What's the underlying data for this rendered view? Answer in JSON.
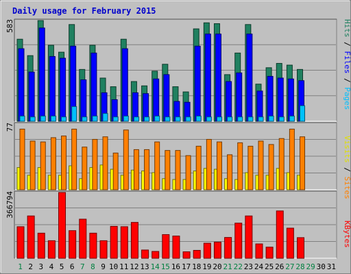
{
  "chart_data": [
    {
      "type": "bar",
      "title": "Daily usage for February 2015",
      "panel": "top",
      "ymax_label": "583",
      "ylim": [
        0,
        583
      ],
      "right_label": [
        "Pages",
        "Files",
        "Hits"
      ],
      "colors": {
        "Hits": "#208060",
        "Files": "#0000ff",
        "Pages": "#00c0ff"
      },
      "x": [
        "1",
        "2",
        "3",
        "4",
        "5",
        "6",
        "7",
        "8",
        "9",
        "10",
        "11",
        "12",
        "13",
        "14",
        "15",
        "16",
        "17",
        "18",
        "19",
        "20",
        "21",
        "22",
        "23",
        "24",
        "25",
        "26",
        "27",
        "28",
        "29",
        "30",
        "31"
      ],
      "x_colors": [
        "#008040",
        "#000000",
        "#000000",
        "#000000",
        "#000000",
        "#000000",
        "#008040",
        "#008040",
        "#000000",
        "#000000",
        "#000000",
        "#000000",
        "#000000",
        "#008040",
        "#008040",
        "#000000",
        "#000000",
        "#000000",
        "#000000",
        "#000000",
        "#008040",
        "#008040",
        "#000000",
        "#000000",
        "#000000",
        "#000000",
        "#008040",
        "#008040",
        "#008040",
        "#000000",
        "#000000"
      ],
      "series": [
        {
          "name": "Hits",
          "values": [
            475,
            380,
            583,
            440,
            400,
            560,
            300,
            440,
            250,
            200,
            475,
            230,
            205,
            290,
            330,
            200,
            170,
            535,
            570,
            565,
            270,
            395,
            560,
            215,
            310,
            335,
            325,
            300,
            0,
            0,
            0
          ]
        },
        {
          "name": "Files",
          "values": [
            420,
            285,
            540,
            375,
            365,
            435,
            240,
            395,
            165,
            125,
            420,
            165,
            160,
            245,
            270,
            115,
            110,
            435,
            505,
            505,
            230,
            280,
            505,
            175,
            260,
            250,
            245,
            235,
            0,
            0,
            0
          ]
        },
        {
          "name": "Pages",
          "values": [
            30,
            25,
            30,
            30,
            25,
            85,
            25,
            30,
            45,
            25,
            30,
            25,
            25,
            30,
            25,
            25,
            25,
            30,
            25,
            25,
            25,
            25,
            25,
            25,
            30,
            25,
            30,
            90,
            0,
            0,
            0
          ]
        }
      ]
    },
    {
      "type": "bar",
      "panel": "middle",
      "ymax_label": "77",
      "ylim": [
        0,
        77
      ],
      "right_label": [
        "Sites",
        "Visits"
      ],
      "colors": {
        "Visits": "#ffff00",
        "Sites": "#ff8000"
      },
      "series": [
        {
          "name": "Visits",
          "values": [
            26,
            17,
            26,
            17,
            17,
            28,
            13,
            26,
            29,
            24,
            17,
            23,
            22,
            20,
            13,
            12,
            12,
            22,
            25,
            24,
            13,
            12,
            20,
            17,
            17,
            25,
            20,
            17,
            0,
            0,
            0
          ]
        },
        {
          "name": "Sites",
          "values": [
            71,
            57,
            56,
            61,
            63,
            71,
            50,
            59,
            62,
            43,
            70,
            47,
            47,
            56,
            46,
            46,
            40,
            51,
            59,
            56,
            41,
            55,
            51,
            57,
            53,
            60,
            71,
            62,
            0,
            0,
            0
          ]
        }
      ]
    },
    {
      "type": "bar",
      "panel": "bottom",
      "ymax_label": "366794",
      "ylim": [
        0,
        366794
      ],
      "right_label": [
        "KBytes"
      ],
      "colors": {
        "KBytes": "#ff0000"
      },
      "series": [
        {
          "name": "KBytes",
          "values": [
            176000,
            236000,
            140000,
            98000,
            366794,
            154000,
            218000,
            140000,
            98000,
            178000,
            176000,
            200000,
            46000,
            38000,
            132000,
            124000,
            36000,
            44000,
            84000,
            90000,
            116000,
            196000,
            236000,
            80000,
            62000,
            264000,
            168000,
            115000,
            0,
            0,
            0
          ]
        }
      ]
    }
  ]
}
